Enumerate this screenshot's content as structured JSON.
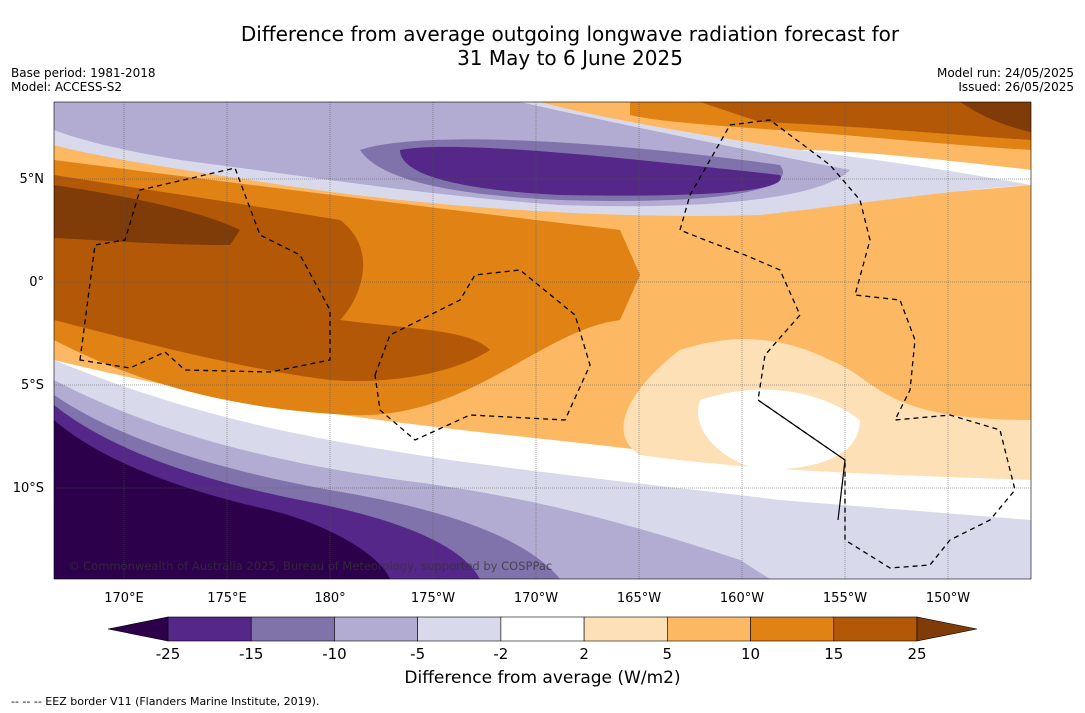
{
  "title_line1": "Difference from average outgoing longwave radiation forecast for",
  "title_line2": "31 May to 6 June 2025",
  "meta_left": [
    "Base period: 1981-2018",
    "Model: ACCESS-S2"
  ],
  "meta_right": [
    "Model run: 24/05/2025",
    "Issued: 26/05/2025"
  ],
  "copyright": "© Commonwealth of Australia 2025, Bureau of Meteorology, supported by COSPPac",
  "lon_labels": [
    "170°E",
    "175°E",
    "180°",
    "175°W",
    "170°W",
    "165°W",
    "160°W",
    "155°W",
    "150°W"
  ],
  "lat_labels": [
    "5°N",
    "0°",
    "5°S",
    "10°S"
  ],
  "colorbar": {
    "title": "Difference from average (W/m2)",
    "tick_labels": [
      "-25",
      "-15",
      "-10",
      "-5",
      "-2",
      "2",
      "5",
      "10",
      "15",
      "25"
    ],
    "colors": [
      "#2d004b",
      "#542788",
      "#8073ac",
      "#b2abd2",
      "#d8daeb",
      "#ffffff",
      "#fee0b6",
      "#fdb863",
      "#e08214",
      "#b35806",
      "#7f3b08"
    ]
  },
  "footer_legend": "-- -- -- EEZ border V11 (Flanders Marine Institute, 2019)."
}
